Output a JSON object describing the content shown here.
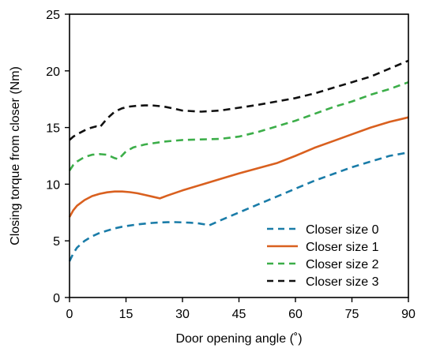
{
  "chart_data": {
    "type": "line",
    "title": "",
    "xlabel": "Door opening angle (˚)",
    "ylabel": "Closing torque from closer (Nm)",
    "xlim": [
      0,
      90
    ],
    "ylim": [
      0,
      25
    ],
    "xticks": [
      "0",
      "15",
      "30",
      "45",
      "60",
      "75",
      "90"
    ],
    "yticks": [
      "0",
      "5",
      "10",
      "15",
      "20",
      "25"
    ],
    "grid": false,
    "legend_position": "bottom-right",
    "series": [
      {
        "name": "Closer size 0",
        "color": "#1a7ca8",
        "dash": "dashed",
        "x": [
          0,
          1,
          2,
          4,
          6,
          8,
          10,
          12,
          14,
          16,
          18,
          20,
          22,
          24,
          26,
          28,
          30,
          32,
          34,
          36,
          37,
          40,
          45,
          50,
          55,
          60,
          65,
          70,
          75,
          80,
          85,
          90
        ],
        "y": [
          3.2,
          3.9,
          4.4,
          5.0,
          5.4,
          5.7,
          5.9,
          6.1,
          6.25,
          6.35,
          6.45,
          6.52,
          6.58,
          6.62,
          6.64,
          6.65,
          6.63,
          6.6,
          6.55,
          6.45,
          6.35,
          6.8,
          7.5,
          8.2,
          8.9,
          9.6,
          10.3,
          10.9,
          11.5,
          12.0,
          12.5,
          12.8
        ]
      },
      {
        "name": "Closer size 1",
        "color": "#d9601f",
        "dash": "solid",
        "x": [
          0,
          1,
          2,
          4,
          6,
          8,
          10,
          12,
          14,
          16,
          18,
          20,
          22,
          24,
          26,
          30,
          35,
          40,
          45,
          50,
          55,
          60,
          65,
          70,
          75,
          80,
          85,
          90
        ],
        "y": [
          7.1,
          7.7,
          8.1,
          8.6,
          8.95,
          9.15,
          9.28,
          9.35,
          9.35,
          9.3,
          9.2,
          9.05,
          8.9,
          8.75,
          9.0,
          9.45,
          9.95,
          10.45,
          10.95,
          11.4,
          11.85,
          12.5,
          13.2,
          13.8,
          14.4,
          15.0,
          15.5,
          15.9
        ]
      },
      {
        "name": "Closer size 2",
        "color": "#3cae49",
        "dash": "dashed",
        "x": [
          0,
          1,
          2,
          4,
          6,
          8,
          10,
          12,
          13,
          15,
          17,
          20,
          25,
          30,
          35,
          40,
          45,
          50,
          55,
          60,
          65,
          70,
          75,
          80,
          85,
          90
        ],
        "y": [
          11.2,
          11.7,
          12.0,
          12.4,
          12.6,
          12.65,
          12.6,
          12.3,
          12.2,
          12.9,
          13.25,
          13.5,
          13.75,
          13.9,
          13.95,
          14.0,
          14.2,
          14.6,
          15.1,
          15.6,
          16.2,
          16.8,
          17.3,
          17.9,
          18.4,
          19.0
        ]
      },
      {
        "name": "Closer size 3",
        "color": "#111111",
        "dash": "dashed",
        "x": [
          0,
          1,
          2,
          4,
          5,
          7,
          8,
          10,
          12,
          14,
          16,
          18,
          20,
          22,
          25,
          28,
          30,
          35,
          40,
          45,
          50,
          55,
          60,
          65,
          70,
          75,
          80,
          85,
          90
        ],
        "y": [
          13.9,
          14.2,
          14.4,
          14.75,
          14.9,
          15.1,
          15.0,
          15.8,
          16.4,
          16.7,
          16.85,
          16.92,
          16.95,
          16.95,
          16.85,
          16.65,
          16.5,
          16.4,
          16.5,
          16.75,
          17.0,
          17.3,
          17.6,
          18.0,
          18.5,
          19.0,
          19.5,
          20.2,
          20.9
        ]
      }
    ]
  }
}
